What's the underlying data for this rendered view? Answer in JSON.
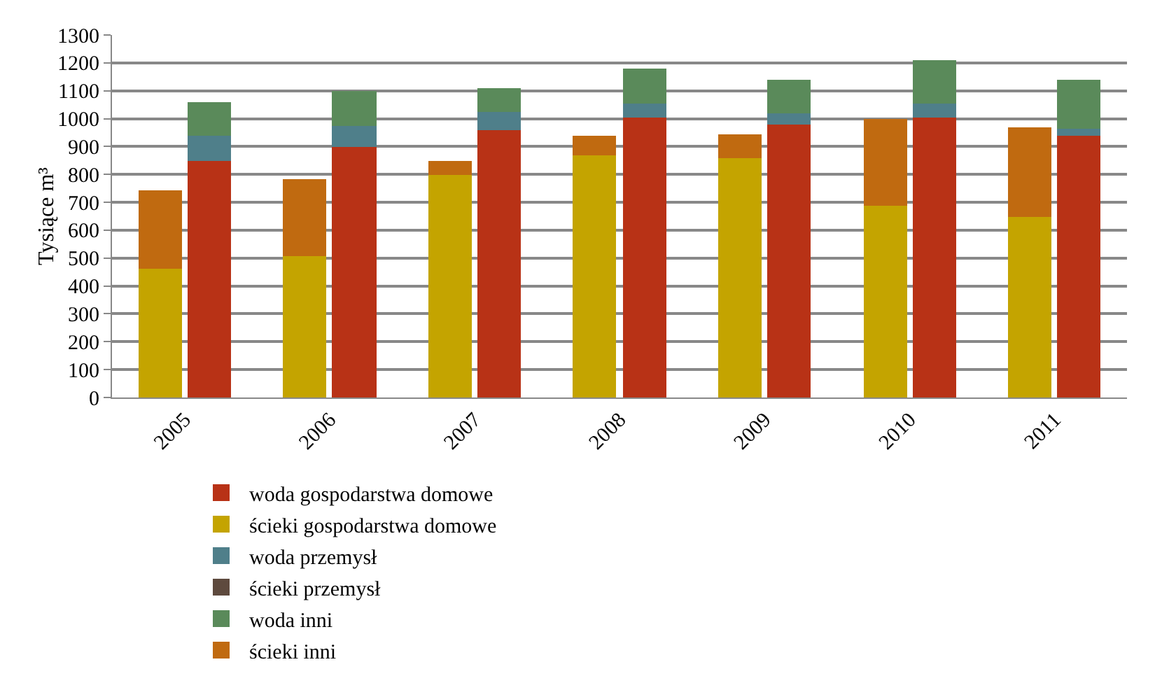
{
  "chart_data": {
    "type": "bar",
    "stacked": true,
    "ylabel": "Tysiące m³",
    "categories": [
      "2005",
      null,
      "2006",
      null,
      "2007",
      null,
      "2008",
      null,
      "2009",
      null,
      "2010",
      null,
      "2011",
      null
    ],
    "series": [
      {
        "name": "woda gospodarstwa domowe",
        "color": "#b83216",
        "values": [
          null,
          850,
          null,
          900,
          null,
          960,
          null,
          1005,
          null,
          980,
          null,
          1005,
          null,
          940
        ]
      },
      {
        "name": "ścieki gospodarstwa domowe",
        "color": "#c4a400",
        "values": [
          460,
          null,
          505,
          null,
          800,
          null,
          870,
          null,
          860,
          null,
          690,
          null,
          650,
          null
        ]
      },
      {
        "name": "woda przemysł",
        "color": "#4f7f8a",
        "values": [
          null,
          90,
          null,
          75,
          null,
          65,
          null,
          50,
          null,
          40,
          null,
          50,
          null,
          25
        ]
      },
      {
        "name": "ścieki przemysł",
        "color": "#5e4a3e",
        "values": [
          0,
          null,
          0,
          null,
          0,
          null,
          0,
          null,
          0,
          null,
          0,
          null,
          0,
          null
        ]
      },
      {
        "name": "woda inni",
        "color": "#5a8a5a",
        "values": [
          null,
          120,
          null,
          125,
          null,
          85,
          null,
          125,
          null,
          120,
          null,
          155,
          null,
          175
        ]
      },
      {
        "name": "ścieki inni",
        "color": "#c06a10",
        "values": [
          285,
          null,
          280,
          null,
          50,
          null,
          70,
          null,
          85,
          null,
          310,
          null,
          320,
          null
        ]
      }
    ],
    "ylim": [
      0,
      1300
    ],
    "yticks": [
      0,
      100,
      200,
      300,
      400,
      500,
      600,
      700,
      800,
      900,
      1000,
      1100,
      1200,
      1300
    ],
    "grid": "y",
    "legend": "bottom"
  }
}
